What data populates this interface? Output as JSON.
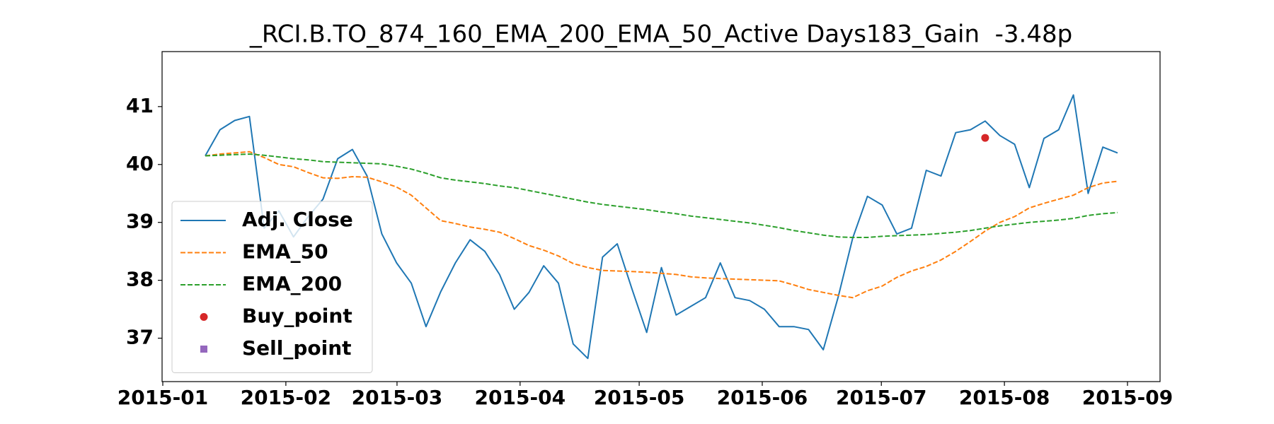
{
  "chart_data": {
    "type": "line",
    "title": "_RCI.B.TO_874_160_EMA_200_EMA_50_Active Days183_Gain  -3.48p",
    "xticks": [
      "2015-01",
      "2015-02",
      "2015-03",
      "2015-04",
      "2015-05",
      "2015-06",
      "2015-07",
      "2015-08",
      "2015-09"
    ],
    "ylim": [
      36.25,
      41.95
    ],
    "yticks": [
      37,
      38,
      39,
      40,
      41
    ],
    "legend": "lower left",
    "series": [
      {
        "name": "Adj. Close",
        "color": "#1f77b4",
        "linestyle": "solid",
        "values": [
          40.15,
          40.6,
          40.76,
          40.83,
          38.9,
          39.2,
          38.75,
          39.1,
          39.4,
          40.1,
          40.26,
          39.8,
          38.8,
          38.3,
          37.95,
          37.2,
          37.8,
          38.3,
          38.7,
          38.5,
          38.1,
          37.5,
          37.79,
          38.25,
          37.95,
          36.9,
          36.65,
          38.4,
          38.63,
          37.85,
          37.1,
          38.22,
          37.4,
          37.55,
          37.7,
          38.3,
          37.7,
          37.65,
          37.5,
          37.2,
          37.2,
          37.15,
          36.8,
          37.7,
          38.73,
          39.45,
          39.3,
          38.8,
          38.9,
          39.9,
          39.8,
          40.55,
          40.6,
          40.75,
          40.5,
          40.35,
          39.6,
          40.45,
          40.6,
          41.2,
          39.5,
          40.3,
          40.2
        ]
      },
      {
        "name": "EMA_50",
        "color": "#ff7f0e",
        "linestyle": "dashed",
        "values": [
          40.15,
          40.18,
          40.2,
          40.22,
          40.12,
          40.0,
          39.96,
          39.86,
          39.77,
          39.76,
          39.79,
          39.78,
          39.7,
          39.61,
          39.47,
          39.25,
          39.03,
          38.98,
          38.92,
          38.88,
          38.83,
          38.72,
          38.6,
          38.52,
          38.42,
          38.29,
          38.22,
          38.17,
          38.16,
          38.15,
          38.14,
          38.12,
          38.1,
          38.06,
          38.04,
          38.03,
          38.02,
          38.01,
          38.0,
          37.99,
          37.92,
          37.84,
          37.79,
          37.74,
          37.7,
          37.82,
          37.9,
          38.05,
          38.16,
          38.24,
          38.35,
          38.5,
          38.67,
          38.85,
          39.0,
          39.1,
          39.25,
          39.33,
          39.4,
          39.47,
          39.6,
          39.68,
          39.71
        ]
      },
      {
        "name": "EMA_200",
        "color": "#2ca02c",
        "linestyle": "dashed",
        "values": [
          40.15,
          40.16,
          40.17,
          40.18,
          40.16,
          40.13,
          40.1,
          40.08,
          40.05,
          40.04,
          40.03,
          40.02,
          40.01,
          39.97,
          39.92,
          39.85,
          39.77,
          39.73,
          39.7,
          39.67,
          39.63,
          39.6,
          39.55,
          39.5,
          39.45,
          39.4,
          39.35,
          39.31,
          39.28,
          39.25,
          39.22,
          39.18,
          39.15,
          39.11,
          39.08,
          39.05,
          39.02,
          38.99,
          38.95,
          38.91,
          38.86,
          38.82,
          38.78,
          38.75,
          38.74,
          38.74,
          38.76,
          38.77,
          38.78,
          38.79,
          38.81,
          38.83,
          38.86,
          38.9,
          38.94,
          38.97,
          39.0,
          39.02,
          39.04,
          39.07,
          39.12,
          39.15,
          39.17
        ]
      },
      {
        "name": "Buy_point",
        "color": "#d62728",
        "marker": "circle",
        "values": [
          null,
          null,
          null,
          null,
          null,
          null,
          null,
          null,
          null,
          null,
          null,
          null,
          null,
          null,
          null,
          null,
          null,
          null,
          null,
          null,
          null,
          null,
          null,
          null,
          null,
          null,
          null,
          null,
          null,
          null,
          null,
          null,
          null,
          null,
          null,
          null,
          null,
          null,
          null,
          null,
          null,
          null,
          null,
          null,
          null,
          null,
          null,
          null,
          null,
          null,
          null,
          null,
          null,
          40.46,
          null,
          null,
          null,
          null,
          null,
          null,
          null,
          null,
          null
        ]
      },
      {
        "name": "Sell_point",
        "color": "#9467bd",
        "marker": "square",
        "values": [
          null,
          null,
          null,
          null,
          null,
          null,
          null,
          null,
          null,
          null,
          null,
          null,
          null,
          null,
          null,
          null,
          null,
          null,
          null,
          null,
          null,
          null,
          null,
          null,
          null,
          null,
          null,
          null,
          null,
          null,
          null,
          null,
          null,
          null,
          null,
          null,
          null,
          null,
          null,
          null,
          null,
          null,
          null,
          null,
          null,
          null,
          null,
          null,
          null,
          null,
          null,
          null,
          null,
          null,
          null,
          null,
          null,
          null,
          null,
          null,
          null,
          null,
          null
        ]
      }
    ]
  }
}
